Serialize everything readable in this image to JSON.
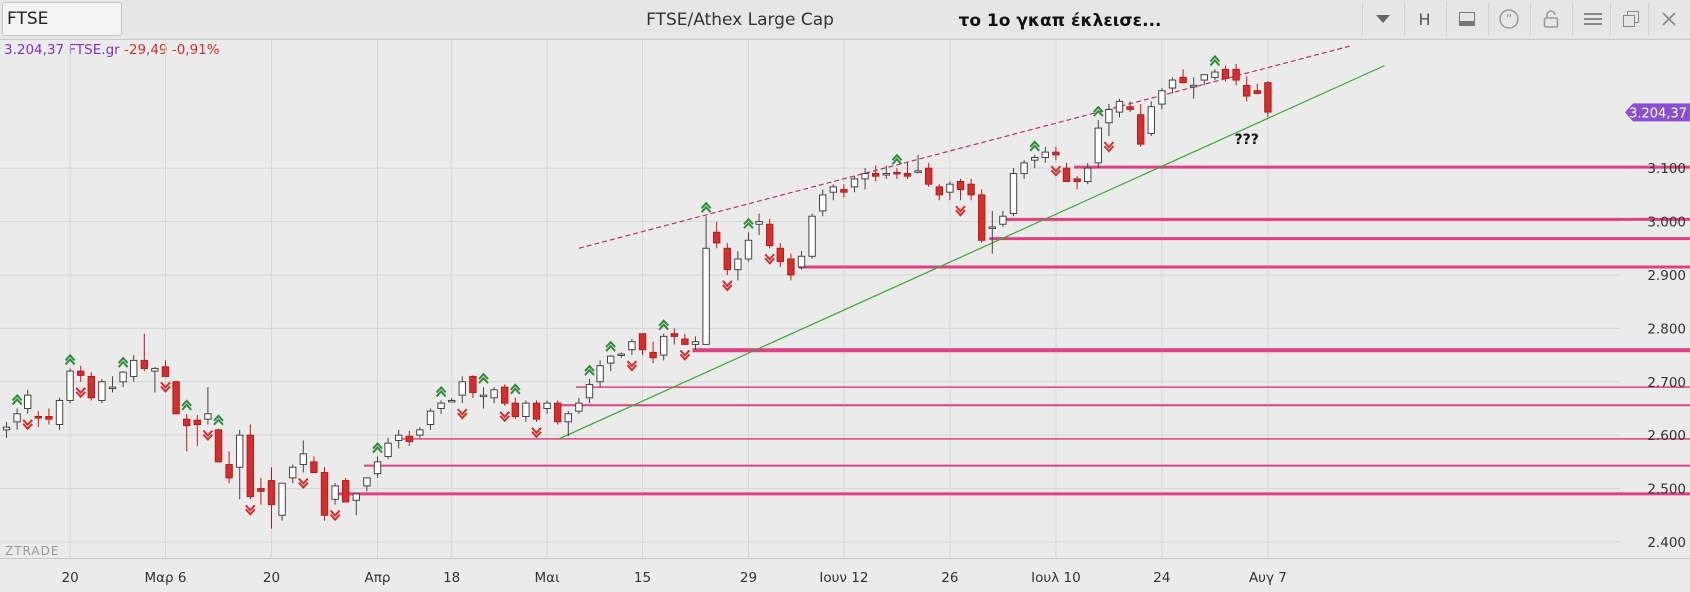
{
  "toolbar": {
    "symbol": "FTSE",
    "instrument_name": "FTSE/Athex Large Cap",
    "comment": "το 1ο γκαπ έκλεισε...",
    "buttons": [
      {
        "name": "dropdown-button",
        "icon": "chevron-down-icon"
      },
      {
        "name": "h-button",
        "label": "H"
      },
      {
        "name": "panel-button",
        "icon": "panel-icon"
      },
      {
        "name": "quote-button",
        "icon": "quote-icon"
      },
      {
        "name": "lock-button",
        "icon": "unlock-icon"
      },
      {
        "name": "menu-button",
        "icon": "menu-icon"
      },
      {
        "name": "restore-button",
        "icon": "restore-icon"
      },
      {
        "name": "close-button",
        "icon": "close-icon"
      }
    ]
  },
  "quote": {
    "price": "3.204,37 FTSE.gr",
    "change": "-29,49",
    "change_pct": "-0,91%"
  },
  "watermark": "ZTRADE",
  "colors": {
    "up": "#ffffff",
    "down": "#d32f2f",
    "support": "#e0407f",
    "trend": "#3aa832",
    "channel": "#b8336a",
    "fractal_up": "#2e8b3a",
    "fractal_down": "#d32f2f",
    "last_tag": "#8a4fd0"
  },
  "chart_data": {
    "type": "candlestick",
    "ylim": [
      2370,
      3340
    ],
    "y_ticks": [
      {
        "v": 2400,
        "label": "2.400"
      },
      {
        "v": 2500,
        "label": "2.500"
      },
      {
        "v": 2600,
        "label": "2.600"
      },
      {
        "v": 2700,
        "label": "2.700"
      },
      {
        "v": 2800,
        "label": "2.800"
      },
      {
        "v": 2900,
        "label": "2.900"
      },
      {
        "v": 3000,
        "label": "3.000"
      },
      {
        "v": 3100,
        "label": "3.100"
      }
    ],
    "x_ticks": [
      {
        "i": 6,
        "label": "20"
      },
      {
        "i": 15,
        "label": "Μαρ 6"
      },
      {
        "i": 25,
        "label": "20"
      },
      {
        "i": 35,
        "label": "Απρ"
      },
      {
        "i": 42,
        "label": "18"
      },
      {
        "i": 51,
        "label": "Μαι"
      },
      {
        "i": 60,
        "label": "15"
      },
      {
        "i": 70,
        "label": "29"
      },
      {
        "i": 79,
        "label": "Ιουν 12"
      },
      {
        "i": 89,
        "label": "26"
      },
      {
        "i": 99,
        "label": "Ιουλ 10"
      },
      {
        "i": 109,
        "label": "24"
      },
      {
        "i": 119,
        "label": "Αυγ 7"
      }
    ],
    "candles": [
      [
        2610,
        2625,
        2595,
        2615
      ],
      [
        2625,
        2650,
        2610,
        2640
      ],
      [
        2650,
        2685,
        2640,
        2675
      ],
      [
        2635,
        2645,
        2615,
        2632
      ],
      [
        2635,
        2650,
        2620,
        2630
      ],
      [
        2620,
        2670,
        2610,
        2665
      ],
      [
        2665,
        2725,
        2660,
        2720
      ],
      [
        2720,
        2730,
        2700,
        2712
      ],
      [
        2710,
        2718,
        2665,
        2670
      ],
      [
        2665,
        2705,
        2660,
        2700
      ],
      [
        2690,
        2710,
        2680,
        2690
      ],
      [
        2700,
        2720,
        2690,
        2718
      ],
      [
        2710,
        2750,
        2700,
        2740
      ],
      [
        2740,
        2790,
        2720,
        2725
      ],
      [
        2720,
        2728,
        2680,
        2725
      ],
      [
        2728,
        2740,
        2710,
        2710
      ],
      [
        2700,
        2702,
        2640,
        2640
      ],
      [
        2630,
        2640,
        2570,
        2618
      ],
      [
        2628,
        2638,
        2580,
        2620
      ],
      [
        2630,
        2690,
        2620,
        2640
      ],
      [
        2610,
        2612,
        2550,
        2550
      ],
      [
        2545,
        2570,
        2510,
        2520
      ],
      [
        2540,
        2610,
        2480,
        2600
      ],
      [
        2600,
        2620,
        2480,
        2485
      ],
      [
        2500,
        2520,
        2470,
        2495
      ],
      [
        2515,
        2540,
        2425,
        2470
      ],
      [
        2450,
        2510,
        2440,
        2510
      ],
      [
        2520,
        2545,
        2510,
        2540
      ],
      [
        2545,
        2590,
        2530,
        2565
      ],
      [
        2550,
        2560,
        2530,
        2530
      ],
      [
        2530,
        2540,
        2440,
        2450
      ],
      [
        2480,
        2510,
        2470,
        2505
      ],
      [
        2515,
        2520,
        2475,
        2475
      ],
      [
        2478,
        2490,
        2450,
        2490
      ],
      [
        2505,
        2520,
        2495,
        2520
      ],
      [
        2528,
        2560,
        2520,
        2550
      ],
      [
        2560,
        2595,
        2555,
        2585
      ],
      [
        2590,
        2610,
        2575,
        2600
      ],
      [
        2598,
        2608,
        2580,
        2588
      ],
      [
        2600,
        2615,
        2595,
        2610
      ],
      [
        2620,
        2650,
        2610,
        2645
      ],
      [
        2650,
        2665,
        2640,
        2660
      ],
      [
        2665,
        2670,
        2665,
        2665
      ],
      [
        2675,
        2710,
        2660,
        2700
      ],
      [
        2710,
        2712,
        2670,
        2680
      ],
      [
        2675,
        2690,
        2650,
        2675
      ],
      [
        2670,
        2690,
        2660,
        2685
      ],
      [
        2690,
        2695,
        2655,
        2660
      ],
      [
        2660,
        2670,
        2630,
        2635
      ],
      [
        2635,
        2665,
        2625,
        2660
      ],
      [
        2660,
        2665,
        2625,
        2630
      ],
      [
        2650,
        2665,
        2640,
        2660
      ],
      [
        2660,
        2665,
        2620,
        2625
      ],
      [
        2625,
        2645,
        2598,
        2640
      ],
      [
        2645,
        2670,
        2640,
        2660
      ],
      [
        2670,
        2705,
        2660,
        2695
      ],
      [
        2700,
        2740,
        2690,
        2730
      ],
      [
        2735,
        2750,
        2720,
        2748
      ],
      [
        2752,
        2755,
        2745,
        2752
      ],
      [
        2760,
        2780,
        2750,
        2775
      ],
      [
        2790,
        2790,
        2750,
        2760
      ],
      [
        2755,
        2775,
        2735,
        2745
      ],
      [
        2750,
        2790,
        2740,
        2785
      ],
      [
        2790,
        2800,
        2770,
        2785
      ],
      [
        2780,
        2790,
        2770,
        2770
      ],
      [
        2770,
        2785,
        2760,
        2775
      ],
      [
        2770,
        3010,
        2770,
        2950
      ],
      [
        2980,
        3000,
        2950,
        2960
      ],
      [
        2950,
        2960,
        2900,
        2910
      ],
      [
        2910,
        2945,
        2890,
        2930
      ],
      [
        2930,
        2980,
        2925,
        2965
      ],
      [
        2995,
        3015,
        2975,
        3000
      ],
      [
        2995,
        3005,
        2950,
        2955
      ],
      [
        2950,
        2960,
        2915,
        2925
      ],
      [
        2930,
        2940,
        2890,
        2900
      ],
      [
        2915,
        2945,
        2910,
        2935
      ],
      [
        2935,
        3015,
        2930,
        3010
      ],
      [
        3020,
        3060,
        3010,
        3050
      ],
      [
        3055,
        3070,
        3040,
        3065
      ],
      [
        3060,
        3070,
        3045,
        3055
      ],
      [
        3065,
        3085,
        3055,
        3080
      ],
      [
        3080,
        3100,
        3060,
        3090
      ],
      [
        3090,
        3105,
        3075,
        3085
      ],
      [
        3090,
        3105,
        3080,
        3090
      ],
      [
        3092,
        3100,
        3080,
        3090
      ],
      [
        3090,
        3110,
        3080,
        3085
      ],
      [
        3095,
        3125,
        3090,
        3095
      ],
      [
        3100,
        3110,
        3065,
        3070
      ],
      [
        3065,
        3070,
        3040,
        3050
      ],
      [
        3055,
        3075,
        3040,
        3070
      ],
      [
        3075,
        3080,
        3040,
        3060
      ],
      [
        3070,
        3080,
        3040,
        3050
      ],
      [
        3050,
        3060,
        2960,
        2965
      ],
      [
        2990,
        3020,
        2940,
        2990
      ],
      [
        2995,
        3020,
        2990,
        3010
      ],
      [
        3015,
        3100,
        3010,
        3090
      ],
      [
        3090,
        3115,
        3080,
        3110
      ],
      [
        3115,
        3125,
        3100,
        3120
      ],
      [
        3120,
        3140,
        3110,
        3130
      ],
      [
        3130,
        3140,
        3115,
        3125
      ],
      [
        3100,
        3110,
        3075,
        3075
      ],
      [
        3080,
        3085,
        3060,
        3075
      ],
      [
        3075,
        3110,
        3070,
        3100
      ],
      [
        3110,
        3190,
        3100,
        3175
      ],
      [
        3185,
        3220,
        3160,
        3210
      ],
      [
        3205,
        3230,
        3195,
        3225
      ],
      [
        3215,
        3225,
        3205,
        3210
      ],
      [
        3200,
        3220,
        3140,
        3145
      ],
      [
        3165,
        3225,
        3160,
        3215
      ],
      [
        3220,
        3250,
        3210,
        3245
      ],
      [
        3250,
        3270,
        3240,
        3265
      ],
      [
        3270,
        3285,
        3260,
        3260
      ],
      [
        3255,
        3270,
        3230,
        3255
      ],
      [
        3265,
        3275,
        3255,
        3275
      ],
      [
        3270,
        3285,
        3265,
        3280
      ],
      [
        3285,
        3292,
        3262,
        3268
      ],
      [
        3285,
        3295,
        3255,
        3265
      ],
      [
        3255,
        3272,
        3225,
        3235
      ],
      [
        3245,
        3258,
        3238,
        3240
      ],
      [
        3260,
        3263,
        3195,
        3205
      ]
    ],
    "fractals_up": [
      1,
      6,
      11,
      17,
      20,
      35,
      41,
      45,
      48,
      55,
      57,
      62,
      66,
      70,
      84,
      97,
      103,
      114
    ],
    "fractals_down": [
      2,
      7,
      15,
      19,
      23,
      28,
      31,
      43,
      47,
      50,
      59,
      64,
      68,
      72,
      90,
      99,
      104
    ],
    "support_lines": [
      {
        "price": 2490,
        "from": 31,
        "width": 3
      },
      {
        "price": 2543,
        "from": 34,
        "width": 2
      },
      {
        "price": 2593,
        "from": 37,
        "width": 1.5
      },
      {
        "price": 2656,
        "from": 52,
        "width": 2
      },
      {
        "price": 2690,
        "from": 54,
        "width": 1.5
      },
      {
        "price": 2759,
        "from": 65,
        "width": 4
      },
      {
        "price": 2915,
        "from": 75,
        "width": 3
      },
      {
        "price": 2968,
        "from": 93,
        "width": 3
      },
      {
        "price": 3004,
        "from": 94,
        "width": 3
      },
      {
        "price": 3102,
        "from": 101,
        "width": 3
      }
    ],
    "trend_line": {
      "i1": 52,
      "p1": 2592,
      "i2": 130,
      "p2": 3292
    },
    "channel_line": {
      "i1": 54,
      "p1": 2950,
      "i2": 127,
      "p2": 3330
    },
    "last": {
      "value": 3204.37,
      "label": "3.204,37"
    },
    "annotation": {
      "text": "???",
      "i": 117,
      "price": 3145
    }
  }
}
